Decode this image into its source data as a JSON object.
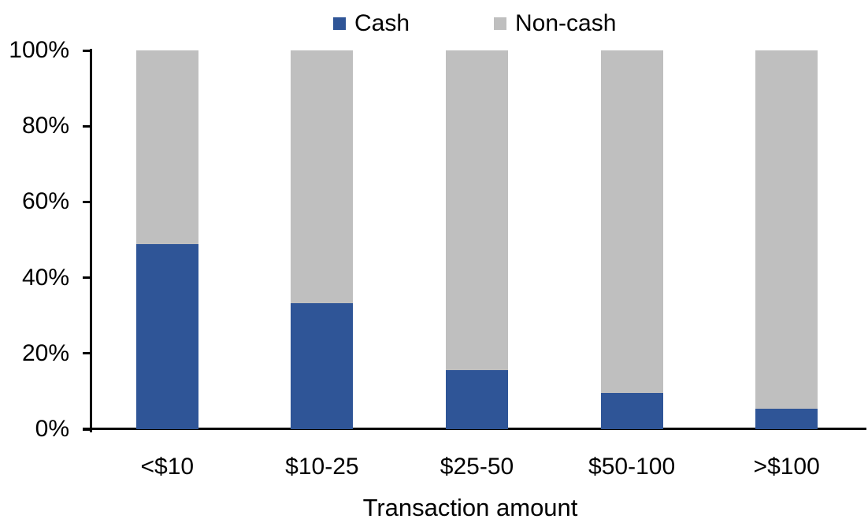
{
  "chart_data": {
    "type": "bar",
    "stacked": true,
    "orientation": "vertical",
    "title": "",
    "xlabel": "Transaction amount",
    "ylabel": "",
    "categories": [
      "<$10",
      "$10-25",
      "$25-50",
      "$50-100",
      ">$100"
    ],
    "series": [
      {
        "name": "Cash",
        "color": "#2F5597",
        "values": [
          48.9,
          33.3,
          15.6,
          9.6,
          5.4
        ]
      },
      {
        "name": "Non-cash",
        "color": "#BFBFBF",
        "values": [
          51.1,
          66.7,
          84.4,
          90.4,
          94.6
        ]
      }
    ],
    "ylim": [
      0,
      100
    ],
    "yticks": [
      0,
      20,
      40,
      60,
      80,
      100
    ],
    "ytick_suffix": "%",
    "legend_position": "top-center",
    "grid": false,
    "axis_color": "#000000",
    "background_color": "#FFFFFF"
  }
}
